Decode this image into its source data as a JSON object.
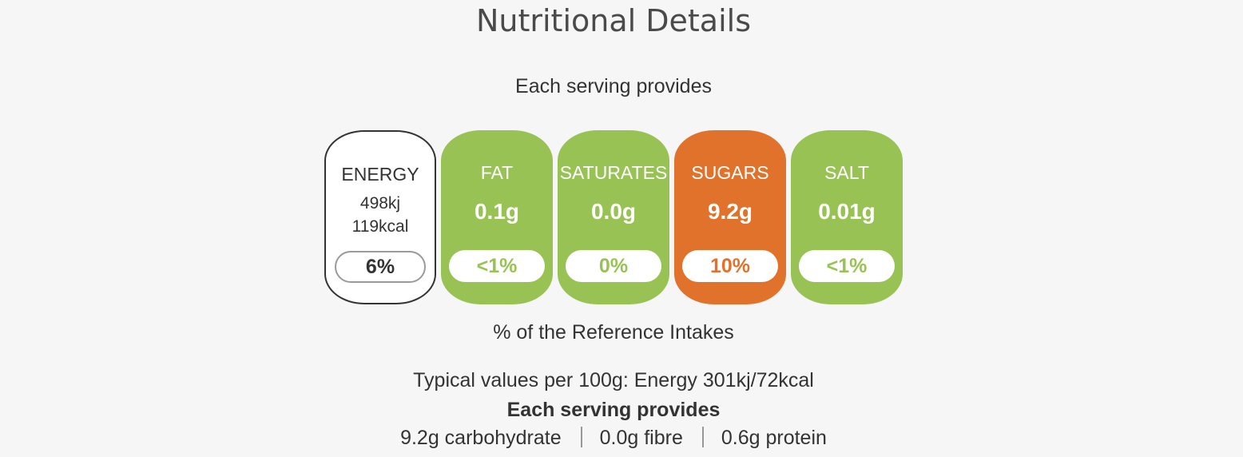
{
  "title": "Nutritional Details",
  "serving_heading": "Each serving provides",
  "labels": [
    {
      "name": "ENERGY",
      "kj": "498kj",
      "kcal": "119kcal",
      "percent": "6%"
    },
    {
      "name": "FAT",
      "amount": "0.1g",
      "percent": "<1%",
      "level": "low"
    },
    {
      "name": "SATURATES",
      "amount": "0.0g",
      "percent": "0%",
      "level": "low"
    },
    {
      "name": "SUGARS",
      "amount": "9.2g",
      "percent": "10%",
      "level": "medium"
    },
    {
      "name": "SALT",
      "amount": "0.01g",
      "percent": "<1%",
      "level": "low"
    }
  ],
  "ri_caption": "% of the Reference Intakes",
  "typical_values": "Typical values per 100g: Energy 301kj/72kcal",
  "serving_bold": "Each serving provides",
  "extras": [
    "9.2g carbohydrate",
    "0.0g fibre",
    "0.6g protein"
  ],
  "colors": {
    "low": "#98c354",
    "medium": "#e0722b",
    "background": "#f6f6f6"
  }
}
